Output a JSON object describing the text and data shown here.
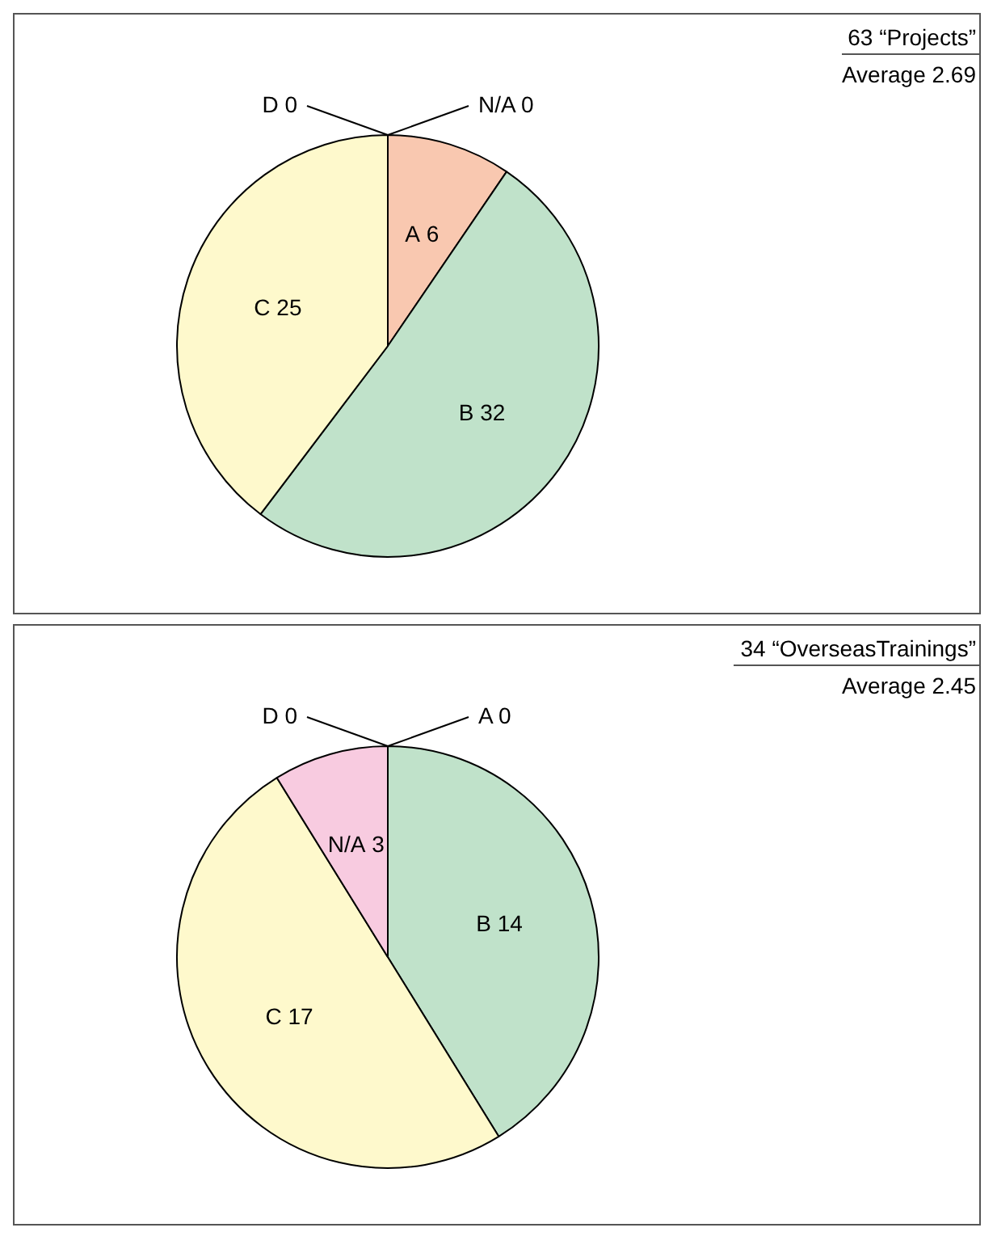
{
  "chart_data": [
    {
      "type": "pie",
      "title": "63 “Projects”",
      "subtitle": "Average 2.69",
      "categories": [
        "A",
        "B",
        "C"
      ],
      "values": [
        6,
        32,
        25
      ],
      "colors": [
        "#f9c8b0",
        "#c0e2ca",
        "#fef9cc"
      ],
      "data_labels": true,
      "legend": false,
      "annotations": [
        "N/A 0",
        "D 0"
      ]
    },
    {
      "type": "pie",
      "title": "34 “OverseasTrainings”",
      "subtitle": "Average 2.45",
      "categories": [
        "B",
        "C",
        "N/A"
      ],
      "values": [
        14,
        17,
        3
      ],
      "colors": [
        "#c0e2ca",
        "#fef9cc",
        "#f8cbe0"
      ],
      "data_labels": true,
      "legend": false,
      "annotations": [
        "A 0",
        "D 0"
      ]
    }
  ]
}
